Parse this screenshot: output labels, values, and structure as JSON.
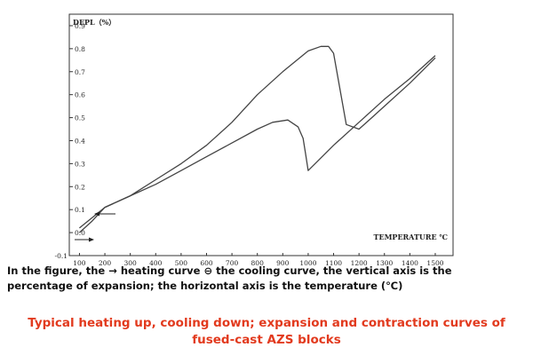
{
  "chart_data": {
    "type": "line",
    "ylabel": "DEPL（%）",
    "xlabel": "TEMPERATURE ℃",
    "yticks": [
      "0.9",
      "0.8",
      "0.7",
      "0.6",
      "0.5",
      "0.4",
      "0.3",
      "0.2",
      "0.1",
      "0.0",
      "-0.1"
    ],
    "xticks": [
      "100",
      "200",
      "300",
      "400",
      "500",
      "600",
      "700",
      "800",
      "900",
      "1000",
      "1100",
      "1200",
      "1300",
      "1400",
      "1500"
    ],
    "ylim": [
      -0.1,
      0.95
    ],
    "xlim": [
      60,
      1570
    ],
    "grid": false,
    "series": [
      {
        "x": [
          100,
          150,
          200,
          300,
          400,
          500,
          600,
          700,
          800,
          900,
          1000,
          1050,
          1080,
          1100,
          1150,
          1200,
          1250,
          1300,
          1400,
          1500
        ],
        "y": [
          0.0,
          0.05,
          0.11,
          0.16,
          0.23,
          0.3,
          0.38,
          0.48,
          0.6,
          0.7,
          0.79,
          0.81,
          0.81,
          0.78,
          0.47,
          0.45,
          0.5,
          0.55,
          0.65,
          0.76
        ]
      },
      {
        "x": [
          100,
          200,
          300,
          400,
          500,
          600,
          700,
          800,
          860,
          920,
          960,
          980,
          990,
          1000,
          1100,
          1200,
          1300,
          1400,
          1500
        ],
        "y": [
          0.02,
          0.11,
          0.16,
          0.21,
          0.27,
          0.33,
          0.39,
          0.45,
          0.48,
          0.49,
          0.46,
          0.41,
          0.34,
          0.27,
          0.38,
          0.48,
          0.58,
          0.67,
          0.77
        ]
      }
    ],
    "annotations": [
      "→",
      "←"
    ],
    "colors": {
      "line": "#444444",
      "frame": "#333333"
    }
  },
  "caption": {
    "line1": "In the figure, the → heating curve ⊖ the cooling curve, the vertical axis is the",
    "line2": "percentage of expansion; the horizontal axis is the temperature (℃)"
  },
  "title": {
    "line1": "Typical heating up, cooling down; expansion and contraction curves of",
    "line2": "fused-cast AZS blocks",
    "color": "#e23a1e"
  }
}
